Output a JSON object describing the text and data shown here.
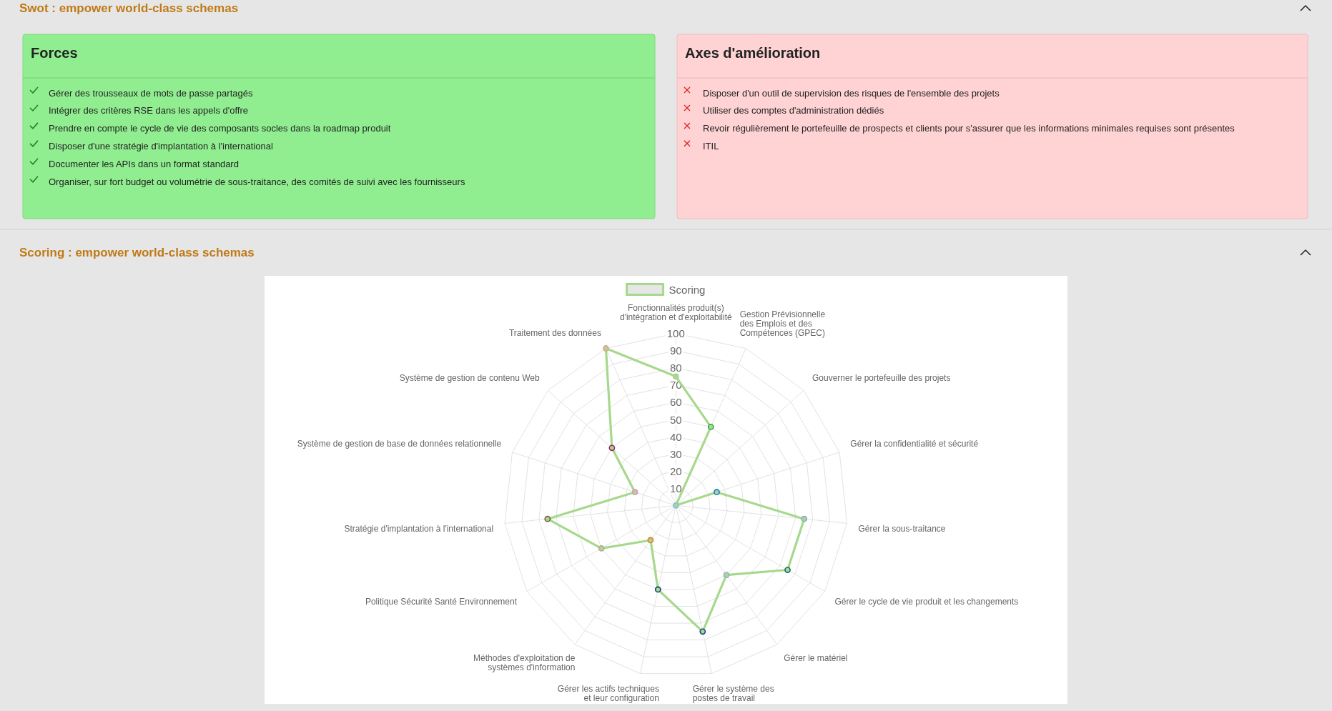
{
  "chart_data": [
    {
      "type": "other",
      "title": "Swot : empower world-class schemas",
      "subtitle": "Forces",
      "annotations": [
        "Gérer des trousseaux de mots de passe partagés",
        "Intégrer des critères RSE dans les appels d'offre",
        "Prendre en compte le cycle de vie des composants socles dans la roadmap produit",
        "Disposer d'une stratégie d'implantation à l'international",
        "Documenter les APIs dans un format standard",
        "Organiser, sur fort budget ou volumétrie de sous-traitance, des comités de suivi avec les fournisseurs"
      ]
    },
    {
      "type": "other",
      "subtitle": "Axes d'amélioration",
      "annotations": [
        "Disposer d'un outil de supervision des risques de l'ensemble des projets",
        "Utiliser des comptes d'administration dédiés",
        "Revoir régulièrement le portefeuille de prospects et clients pour s'assurer que les informations minimales requises sont présentes",
        "ITIL"
      ]
    },
    {
      "type": "radar",
      "title": "Scoring : empower world-class schemas",
      "categories": [
        "Fonctionnalités produit(s) d'intégration et d'exploitabilité",
        "Gestion Prévisionnelle des Emplois et des Compétences (GPEC)",
        "Gouverner le portefeuille des projets",
        "Gérer la confidentialité et sécurité",
        "Gérer la sous-traitance",
        "Gérer le cycle de vie produit et les changements",
        "Gérer le matériel",
        "Gérer le système des postes de travail",
        "Gérer les actifs techniques et leur configuration",
        "Méthodes d'exploitation de systèmes d'information",
        "Politique Sécurité Santé Environnement",
        "Stratégie d'implantation à l'international",
        "Système de gestion de base de données relationnelle",
        "Système de gestion de contenu Web",
        "Traitement des données"
      ],
      "series": [
        {
          "name": "Scoring",
          "color": "#a6d98c",
          "colors": [
            "#a9d18e",
            "#33a852",
            "#8ab8e8",
            "#1f78d1",
            "#8fa9c8",
            "#1b6b6b",
            "#9aa9d6",
            "#1f3f8f",
            "#1a3a8a",
            "#e8782a",
            "#c4a39a",
            "#7a5548",
            "#e48fc4",
            "#9c1f6b",
            "#ef9a9a"
          ],
          "values": [
            75,
            50,
            0,
            25,
            75,
            75,
            50,
            75,
            50,
            25,
            50,
            75,
            25,
            50,
            100
          ]
        }
      ],
      "ylim": [
        0,
        100
      ],
      "yticks": [
        10,
        20,
        30,
        40,
        50,
        60,
        70,
        80,
        90,
        100
      ],
      "grid": true,
      "legend": "top",
      "marker": "circle"
    }
  ]
}
